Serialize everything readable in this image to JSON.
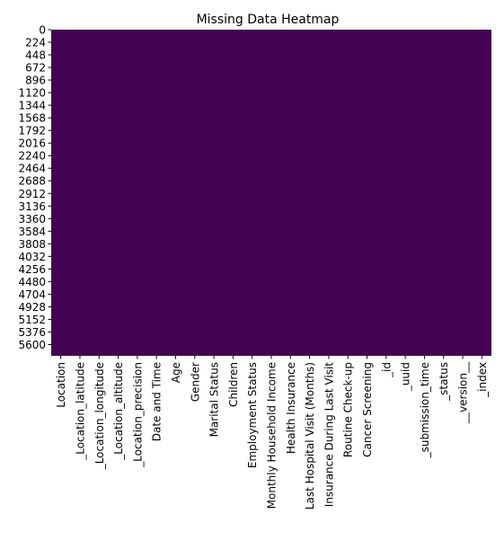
{
  "chart_data": {
    "type": "heatmap",
    "title": "Missing Data Heatmap",
    "xlabel": "",
    "ylabel": "",
    "columns": [
      "Location",
      "_Location_latitude",
      "_Location_longitude",
      "_Location_altitude",
      "_Location_precision",
      "Date and Time",
      "Age",
      "Gender",
      "Marital Status",
      "Children",
      "Employment Status",
      "Monthly Household Income",
      "Health Insurance",
      "Last Hospital Visit (Months)",
      "Insurance During Last Visit",
      "Routine Check-up",
      "Cancer Screening",
      "_id",
      "_uuid",
      "_submission_time",
      "_status",
      "__version__",
      "_index"
    ],
    "row_ticks": [
      0,
      224,
      448,
      672,
      896,
      1120,
      1344,
      1568,
      1792,
      2016,
      2240,
      2464,
      2688,
      2912,
      3136,
      3360,
      3584,
      3808,
      4032,
      4256,
      4480,
      4704,
      4928,
      5152,
      5376,
      5600
    ],
    "row_count": 5800,
    "missing_values_present": false,
    "cell_color": "#440154",
    "colorbar": false
  }
}
